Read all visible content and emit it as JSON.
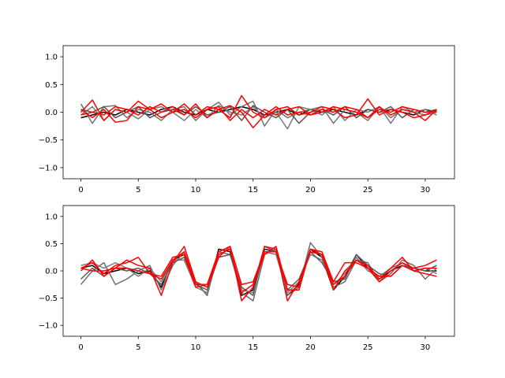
{
  "chart_data": [
    {
      "type": "line",
      "title": "",
      "xlabel": "",
      "ylabel": "",
      "xlim": [
        -1.55,
        32.55
      ],
      "ylim": [
        -1.2,
        1.2
      ],
      "xticks": [
        0,
        5,
        10,
        15,
        20,
        25,
        30
      ],
      "yticks": [
        -1.0,
        -0.5,
        0.0,
        0.5,
        1.0
      ],
      "xtick_labels": [
        "0",
        "5",
        "10",
        "15",
        "20",
        "25",
        "30"
      ],
      "ytick_labels": [
        "−1.0",
        "−0.5",
        "0.0",
        "0.5",
        "1.0"
      ],
      "grid": false,
      "legend": "none",
      "x": [
        0,
        1,
        2,
        3,
        4,
        5,
        6,
        7,
        8,
        9,
        10,
        11,
        12,
        13,
        14,
        15,
        16,
        17,
        18,
        19,
        20,
        21,
        22,
        23,
        24,
        25,
        26,
        27,
        28,
        29,
        30,
        31
      ],
      "series": [
        {
          "color": "#000000",
          "values": [
            -0.1,
            -0.05,
            0.0,
            -0.05,
            0.05,
            0.0,
            -0.05,
            0.05,
            0.1,
            0.0,
            -0.05,
            0.05,
            0.0,
            0.05,
            0.1,
            0.05,
            -0.05,
            0.0,
            0.05,
            -0.05,
            0.05,
            0.0,
            0.05,
            0.0,
            -0.05,
            0.05,
            0.0,
            0.05,
            0.0,
            -0.05,
            0.05,
            0.0
          ]
        },
        {
          "color": "#737373",
          "values": [
            0.15,
            -0.2,
            0.1,
            0.12,
            -0.1,
            0.05,
            0.0,
            -0.15,
            0.05,
            0.1,
            -0.15,
            0.05,
            0.18,
            -0.05,
            0.1,
            0.2,
            -0.25,
            0.05,
            -0.1,
            0.0,
            0.05,
            0.1,
            -0.2,
            0.05,
            0.0,
            -0.15,
            0.1,
            -0.1,
            0.05,
            0.0,
            -0.05,
            0.0
          ]
        },
        {
          "color": "#7a7a7a",
          "values": [
            -0.05,
            0.1,
            -0.15,
            0.05,
            0.0,
            -0.12,
            0.05,
            0.1,
            0.0,
            -0.15,
            0.05,
            -0.1,
            0.12,
            0.0,
            -0.05,
            0.1,
            -0.1,
            0.0,
            -0.3,
            0.1,
            0.05,
            -0.05,
            0.1,
            -0.15,
            0.05,
            0.0,
            0.1,
            -0.2,
            0.1,
            0.0,
            0.05,
            -0.05
          ]
        },
        {
          "color": "#555555",
          "values": [
            0.05,
            0.0,
            0.1,
            -0.1,
            0.0,
            0.1,
            -0.1,
            0.0,
            0.05,
            -0.05,
            0.1,
            -0.05,
            0.0,
            0.1,
            -0.15,
            0.12,
            0.0,
            -0.1,
            0.05,
            -0.2,
            0.0,
            0.05,
            -0.05,
            0.1,
            -0.1,
            0.05,
            0.0,
            0.1,
            -0.1,
            0.05,
            0.0,
            0.05
          ]
        },
        {
          "color": "#ff0000",
          "values": [
            0.0,
            0.22,
            -0.15,
            0.05,
            0.0,
            0.2,
            0.05,
            -0.1,
            0.0,
            0.15,
            -0.05,
            0.1,
            0.05,
            -0.1,
            0.3,
            0.0,
            -0.1,
            0.05,
            0.1,
            -0.05,
            0.0,
            0.1,
            0.05,
            -0.1,
            -0.05,
            0.24,
            -0.05,
            0.05,
            0.0,
            -0.1,
            -0.05,
            0.05
          ]
        },
        {
          "color": "#ff0000",
          "values": [
            -0.05,
            0.0,
            -0.05,
            0.1,
            0.05,
            -0.05,
            0.1,
            0.0,
            0.1,
            -0.05,
            0.15,
            -0.1,
            0.05,
            0.12,
            0.0,
            -0.28,
            -0.05,
            0.1,
            -0.05,
            0.0,
            -0.05,
            0.05,
            0.0,
            0.1,
            0.05,
            -0.1,
            0.1,
            -0.05,
            0.05,
            0.0,
            -0.15,
            0.05
          ]
        },
        {
          "color": "#ff0000",
          "values": [
            0.05,
            -0.1,
            0.05,
            -0.18,
            -0.15,
            0.1,
            0.05,
            0.15,
            0.0,
            0.05,
            -0.1,
            0.05,
            0.1,
            -0.15,
            0.05,
            -0.1,
            0.05,
            -0.05,
            0.05,
            0.1,
            -0.05,
            0.0,
            0.1,
            0.05,
            0.0,
            -0.1,
            0.05,
            0.0,
            0.1,
            0.05,
            0.0,
            0.02
          ]
        }
      ]
    },
    {
      "type": "line",
      "title": "",
      "xlabel": "",
      "ylabel": "",
      "xlim": [
        -1.55,
        32.55
      ],
      "ylim": [
        -1.2,
        1.2
      ],
      "xticks": [
        0,
        5,
        10,
        15,
        20,
        25,
        30
      ],
      "yticks": [
        -1.0,
        -0.5,
        0.0,
        0.5,
        1.0
      ],
      "xtick_labels": [
        "0",
        "5",
        "10",
        "15",
        "20",
        "25",
        "30"
      ],
      "ytick_labels": [
        "−1.0",
        "−0.5",
        "0.0",
        "0.5",
        "1.0"
      ],
      "grid": false,
      "legend": "none",
      "x": [
        0,
        1,
        2,
        3,
        4,
        5,
        6,
        7,
        8,
        9,
        10,
        11,
        12,
        13,
        14,
        15,
        16,
        17,
        18,
        19,
        20,
        21,
        22,
        23,
        24,
        25,
        26,
        27,
        28,
        29,
        30,
        31
      ],
      "series": [
        {
          "color": "#000000",
          "values": [
            0.05,
            0.1,
            -0.05,
            0.0,
            0.05,
            -0.05,
            0.0,
            -0.3,
            0.2,
            0.3,
            -0.2,
            -0.45,
            0.4,
            0.35,
            -0.45,
            -0.35,
            0.4,
            0.35,
            -0.45,
            -0.25,
            0.4,
            0.25,
            -0.35,
            -0.1,
            0.3,
            0.05,
            -0.15,
            0.0,
            0.1,
            0.05,
            0.0,
            0.0
          ]
        },
        {
          "color": "#6e6e6e",
          "values": [
            -0.25,
            0.0,
            0.15,
            -0.25,
            -0.15,
            0.0,
            0.1,
            -0.35,
            0.1,
            0.35,
            -0.2,
            -0.45,
            0.35,
            0.3,
            -0.4,
            -0.55,
            0.3,
            0.4,
            -0.45,
            -0.3,
            0.52,
            0.25,
            -0.3,
            -0.2,
            0.2,
            0.15,
            -0.2,
            -0.05,
            0.2,
            0.1,
            -0.15,
            0.05
          ]
        },
        {
          "color": "#7a7a7a",
          "values": [
            0.1,
            0.15,
            0.05,
            0.15,
            0.05,
            -0.1,
            0.05,
            -0.2,
            0.2,
            0.2,
            -0.3,
            -0.4,
            0.3,
            0.4,
            -0.35,
            -0.4,
            0.35,
            0.3,
            -0.4,
            -0.2,
            0.3,
            0.2,
            -0.25,
            -0.05,
            0.25,
            0.0,
            -0.1,
            0.05,
            0.15,
            0.0,
            0.05,
            -0.05
          ]
        },
        {
          "color": "#5a5a5a",
          "values": [
            -0.15,
            0.05,
            -0.1,
            0.05,
            0.0,
            0.05,
            -0.05,
            -0.25,
            0.15,
            0.25,
            -0.25,
            -0.35,
            0.25,
            0.3,
            -0.3,
            -0.45,
            0.45,
            0.35,
            -0.35,
            -0.15,
            0.35,
            0.15,
            -0.2,
            -0.15,
            0.3,
            0.1,
            -0.05,
            -0.1,
            0.1,
            0.05,
            0.0,
            0.1
          ]
        },
        {
          "color": "#ff0000",
          "values": [
            0.0,
            0.2,
            -0.1,
            0.05,
            0.2,
            0.1,
            0.05,
            -0.45,
            0.15,
            0.45,
            -0.2,
            -0.3,
            0.25,
            0.45,
            -0.55,
            -0.3,
            0.45,
            0.4,
            -0.55,
            -0.2,
            0.35,
            0.3,
            -0.35,
            0.0,
            0.2,
            0.05,
            -0.2,
            0.0,
            0.15,
            0.05,
            0.1,
            0.2
          ]
        },
        {
          "color": "#ff0000",
          "values": [
            0.05,
            0.15,
            -0.05,
            0.1,
            0.15,
            0.25,
            -0.05,
            -0.1,
            0.25,
            0.3,
            -0.3,
            -0.25,
            0.3,
            0.4,
            -0.4,
            -0.25,
            0.3,
            0.45,
            -0.35,
            -0.35,
            0.4,
            0.3,
            -0.25,
            -0.1,
            0.2,
            0.1,
            -0.15,
            0.05,
            0.25,
            0.0,
            0.05,
            0.05
          ]
        },
        {
          "color": "#ff0000",
          "values": [
            0.05,
            0.0,
            0.0,
            0.05,
            0.05,
            0.0,
            -0.05,
            -0.15,
            0.2,
            0.35,
            -0.25,
            -0.25,
            0.35,
            0.45,
            -0.25,
            -0.2,
            0.35,
            0.35,
            -0.25,
            -0.3,
            0.4,
            0.35,
            -0.2,
            0.15,
            0.15,
            0.05,
            -0.1,
            -0.1,
            0.1,
            0.0,
            -0.05,
            -0.1
          ]
        }
      ]
    }
  ]
}
